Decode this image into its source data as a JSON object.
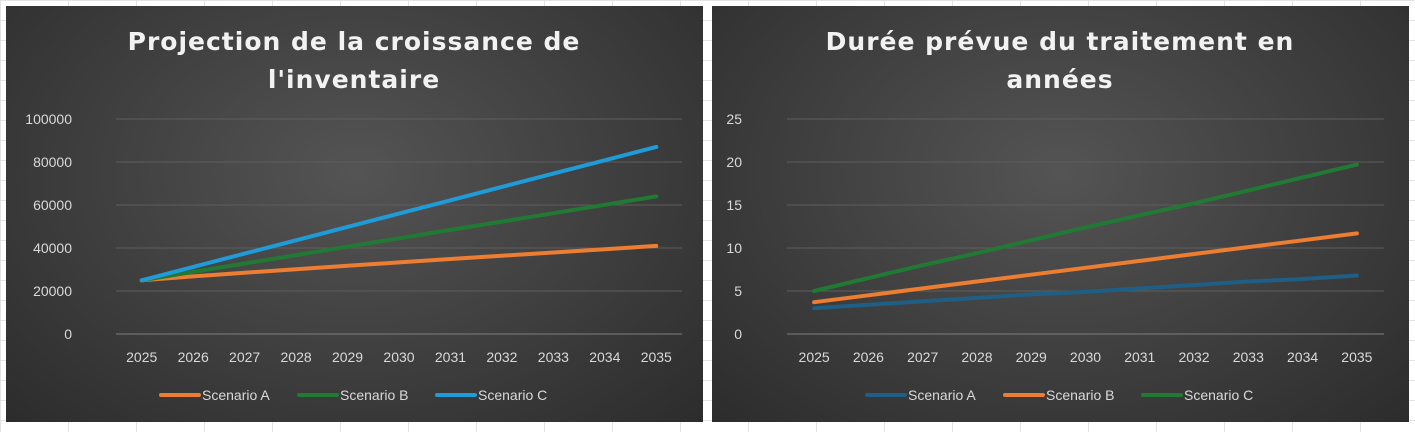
{
  "chart_data": [
    {
      "type": "line",
      "title_lines": [
        "Projection de la croissance de",
        "l'inventaire"
      ],
      "xlabel": "",
      "ylabel": "",
      "categories": [
        "2025",
        "2026",
        "2027",
        "2028",
        "2029",
        "2030",
        "2031",
        "2032",
        "2033",
        "2034",
        "2035"
      ],
      "ylim": [
        0,
        100000
      ],
      "yticks": [
        0,
        20000,
        40000,
        60000,
        80000,
        100000
      ],
      "grid": true,
      "legend": "bottom",
      "series": [
        {
          "name": "Scenario A",
          "color": "#ed7d31",
          "values": [
            25000,
            26800,
            28500,
            30100,
            31700,
            33300,
            34900,
            36400,
            37900,
            39400,
            41000
          ]
        },
        {
          "name": "Scenario B",
          "color": "#217a33",
          "values": [
            25000,
            28900,
            32800,
            36700,
            40600,
            44500,
            48400,
            52300,
            56200,
            60100,
            64000
          ]
        },
        {
          "name": "Scenario C",
          "color": "#1f9bd7",
          "values": [
            25000,
            31200,
            37400,
            43600,
            49800,
            56000,
            62200,
            68400,
            74600,
            80800,
            87000
          ]
        }
      ]
    },
    {
      "type": "line",
      "title_lines": [
        "Durée prévue du traitement en",
        "années"
      ],
      "xlabel": "",
      "ylabel": "",
      "categories": [
        "2025",
        "2026",
        "2027",
        "2028",
        "2029",
        "2030",
        "2031",
        "2032",
        "2033",
        "2034",
        "2035"
      ],
      "ylim": [
        0,
        25
      ],
      "yticks": [
        0,
        5,
        10,
        15,
        20,
        25
      ],
      "grid": true,
      "legend": "bottom",
      "series": [
        {
          "name": "Scenario A",
          "color": "#1f5e85",
          "values": [
            3.0,
            3.4,
            3.8,
            4.2,
            4.6,
            4.9,
            5.3,
            5.7,
            6.1,
            6.4,
            6.8
          ]
        },
        {
          "name": "Scenario B",
          "color": "#ed7d31",
          "values": [
            3.7,
            4.5,
            5.3,
            6.1,
            6.9,
            7.7,
            8.5,
            9.3,
            10.1,
            10.9,
            11.7
          ]
        },
        {
          "name": "Scenario C",
          "color": "#217a33",
          "values": [
            5.0,
            6.5,
            8.0,
            9.4,
            10.9,
            12.4,
            13.8,
            15.2,
            16.7,
            18.2,
            19.7
          ]
        }
      ]
    }
  ]
}
